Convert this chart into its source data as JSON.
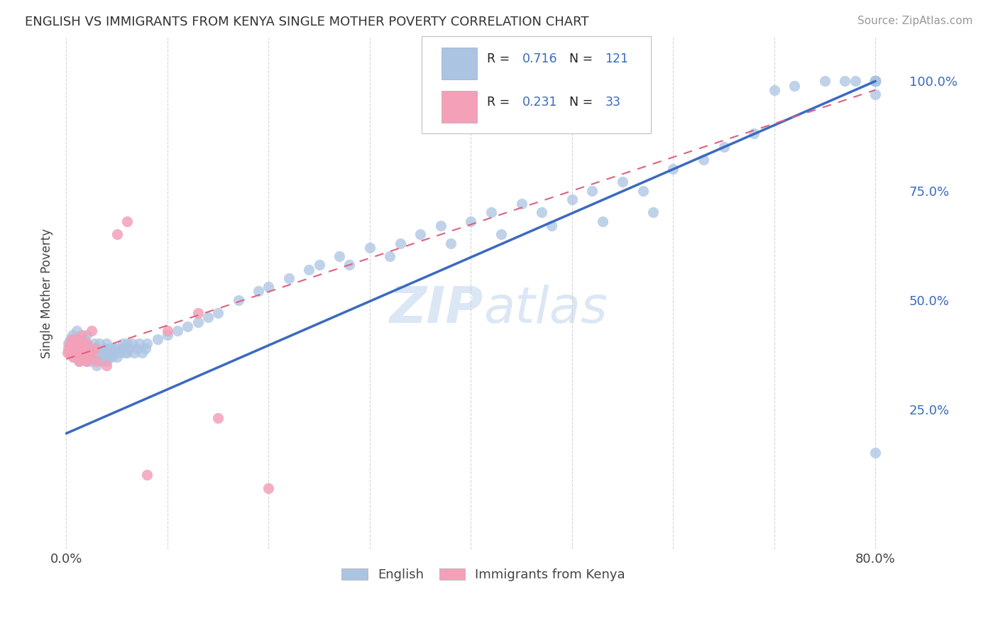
{
  "title": "ENGLISH VS IMMIGRANTS FROM KENYA SINGLE MOTHER POVERTY CORRELATION CHART",
  "source": "Source: ZipAtlas.com",
  "ylabel": "Single Mother Poverty",
  "x_min": 0.0,
  "x_max": 0.8,
  "y_min": 0.0,
  "y_max": 1.05,
  "x_ticks": [
    0.0,
    0.1,
    0.2,
    0.3,
    0.4,
    0.5,
    0.6,
    0.7,
    0.8
  ],
  "x_tick_labels": [
    "0.0%",
    "",
    "",
    "",
    "",
    "",
    "",
    "",
    "80.0%"
  ],
  "y_tick_labels_right": [
    "25.0%",
    "50.0%",
    "75.0%",
    "100.0%"
  ],
  "y_tick_vals_right": [
    0.25,
    0.5,
    0.75,
    1.0
  ],
  "legend_R": [
    "0.716",
    "0.231"
  ],
  "legend_N": [
    "121",
    "33"
  ],
  "english_color": "#aac4e2",
  "kenya_color": "#f4a0b8",
  "english_line_color": "#3a6abf",
  "kenya_line_color": "#e06080",
  "watermark": "ZIPatlas",
  "english_line_x0": 0.0,
  "english_line_y0": 0.195,
  "english_line_x1": 0.8,
  "english_line_y1": 1.0,
  "kenya_line_x0": 0.0,
  "kenya_line_y0": 0.365,
  "kenya_line_x1": 0.8,
  "kenya_line_y1": 0.98,
  "english_x": [
    0.002,
    0.003,
    0.004,
    0.005,
    0.006,
    0.007,
    0.008,
    0.01,
    0.01,
    0.01,
    0.012,
    0.013,
    0.013,
    0.014,
    0.015,
    0.015,
    0.016,
    0.017,
    0.018,
    0.018,
    0.02,
    0.02,
    0.02,
    0.02,
    0.022,
    0.023,
    0.025,
    0.025,
    0.027,
    0.028,
    0.03,
    0.03,
    0.03,
    0.032,
    0.033,
    0.035,
    0.035,
    0.037,
    0.038,
    0.04,
    0.04,
    0.04,
    0.042,
    0.043,
    0.045,
    0.046,
    0.047,
    0.05,
    0.05,
    0.052,
    0.055,
    0.056,
    0.058,
    0.06,
    0.06,
    0.062,
    0.065,
    0.067,
    0.07,
    0.072,
    0.075,
    0.078,
    0.08,
    0.09,
    0.1,
    0.11,
    0.12,
    0.13,
    0.14,
    0.15,
    0.17,
    0.19,
    0.2,
    0.22,
    0.24,
    0.25,
    0.27,
    0.28,
    0.3,
    0.32,
    0.33,
    0.35,
    0.37,
    0.38,
    0.4,
    0.42,
    0.43,
    0.45,
    0.47,
    0.48,
    0.5,
    0.52,
    0.53,
    0.55,
    0.57,
    0.58,
    0.6,
    0.63,
    0.65,
    0.68,
    0.7,
    0.72,
    0.75,
    0.77,
    0.78,
    0.8,
    0.8,
    0.8,
    0.8,
    0.8,
    0.8,
    0.8,
    0.8,
    0.8,
    0.8,
    0.8,
    0.8,
    0.8,
    0.8,
    0.8,
    0.8
  ],
  "english_y": [
    0.4,
    0.38,
    0.41,
    0.39,
    0.42,
    0.37,
    0.4,
    0.38,
    0.4,
    0.43,
    0.36,
    0.38,
    0.41,
    0.39,
    0.37,
    0.4,
    0.38,
    0.39,
    0.37,
    0.41,
    0.36,
    0.38,
    0.4,
    0.42,
    0.37,
    0.39,
    0.36,
    0.39,
    0.38,
    0.4,
    0.35,
    0.37,
    0.39,
    0.38,
    0.4,
    0.36,
    0.38,
    0.37,
    0.39,
    0.36,
    0.38,
    0.4,
    0.37,
    0.39,
    0.37,
    0.38,
    0.39,
    0.37,
    0.39,
    0.38,
    0.39,
    0.4,
    0.38,
    0.38,
    0.4,
    0.39,
    0.4,
    0.38,
    0.39,
    0.4,
    0.38,
    0.39,
    0.4,
    0.41,
    0.42,
    0.43,
    0.44,
    0.45,
    0.46,
    0.47,
    0.5,
    0.52,
    0.53,
    0.55,
    0.57,
    0.58,
    0.6,
    0.58,
    0.62,
    0.6,
    0.63,
    0.65,
    0.67,
    0.63,
    0.68,
    0.7,
    0.65,
    0.72,
    0.7,
    0.67,
    0.73,
    0.75,
    0.68,
    0.77,
    0.75,
    0.7,
    0.8,
    0.82,
    0.85,
    0.88,
    0.98,
    0.99,
    1.0,
    1.0,
    1.0,
    1.0,
    1.0,
    1.0,
    1.0,
    1.0,
    1.0,
    1.0,
    1.0,
    1.0,
    1.0,
    1.0,
    1.0,
    1.0,
    1.0,
    0.97,
    0.15
  ],
  "kenya_x": [
    0.001,
    0.002,
    0.003,
    0.004,
    0.005,
    0.006,
    0.007,
    0.008,
    0.009,
    0.01,
    0.01,
    0.012,
    0.013,
    0.015,
    0.015,
    0.016,
    0.017,
    0.018,
    0.02,
    0.02,
    0.022,
    0.025,
    0.025,
    0.028,
    0.03,
    0.04,
    0.05,
    0.06,
    0.08,
    0.1,
    0.13,
    0.15,
    0.2
  ],
  "kenya_y": [
    0.38,
    0.39,
    0.4,
    0.38,
    0.41,
    0.39,
    0.37,
    0.4,
    0.38,
    0.4,
    0.41,
    0.37,
    0.36,
    0.38,
    0.42,
    0.39,
    0.4,
    0.38,
    0.36,
    0.4,
    0.37,
    0.38,
    0.43,
    0.39,
    0.36,
    0.35,
    0.65,
    0.68,
    0.1,
    0.43,
    0.47,
    0.23,
    0.07
  ]
}
